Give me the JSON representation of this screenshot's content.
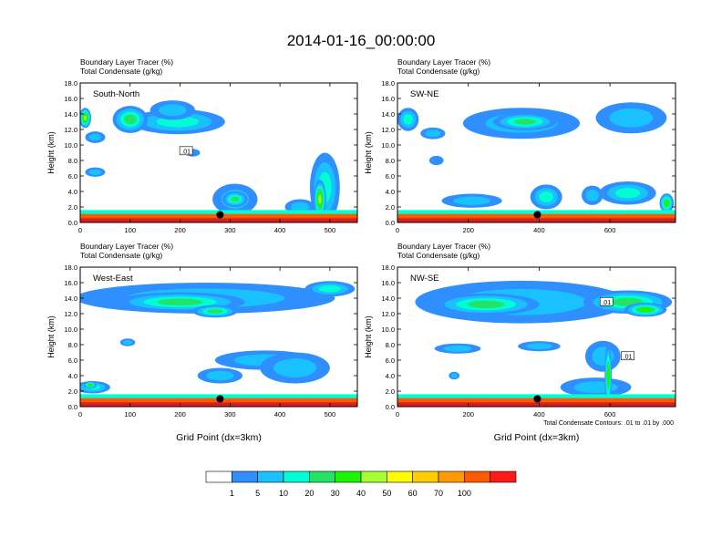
{
  "title": "2014-01-16_00:00:00",
  "chart_data": [
    {
      "type": "heatmap",
      "panel_label": "South-North",
      "title_lines": [
        "Boundary Layer Tracer   (%)",
        "Total Condensate   (g/kg)"
      ],
      "ylabel": "Height (km)",
      "xlabel": "",
      "xlim": [
        0,
        555
      ],
      "ylim": [
        0,
        18
      ],
      "xticks": [
        "0",
        "100",
        "200",
        "300",
        "400",
        "500"
      ],
      "xtick_values": [
        0,
        100,
        200,
        300,
        400,
        500
      ],
      "yticks": [
        "0.0",
        "2.0",
        "4.0",
        "6.0",
        "8.0",
        "10.0",
        "12.0",
        "14.0",
        "16.0",
        "18.0"
      ],
      "marker": {
        "x": 280,
        "y": 1.0
      },
      "contour_label": ".01",
      "contour_label_pos": {
        "x": 212,
        "y": 9.2
      },
      "blobs": [
        {
          "x": 195,
          "y": 13.0,
          "w": 190,
          "h": 3.2,
          "level": 3
        },
        {
          "x": 100,
          "y": 13.3,
          "w": 70,
          "h": 3.5,
          "level": 4
        },
        {
          "x": 10,
          "y": 13.5,
          "w": 24,
          "h": 2.6,
          "level": 6
        },
        {
          "x": 185,
          "y": 14.5,
          "w": 90,
          "h": 2.5,
          "level": 2
        },
        {
          "x": 30,
          "y": 11.0,
          "w": 40,
          "h": 1.5,
          "level": 2
        },
        {
          "x": 30,
          "y": 6.5,
          "w": 40,
          "h": 1.2,
          "level": 2
        },
        {
          "x": 225,
          "y": 9.0,
          "w": 30,
          "h": 1.0,
          "level": 1
        },
        {
          "x": 310,
          "y": 3.0,
          "w": 90,
          "h": 4.0,
          "level": 2
        },
        {
          "x": 310,
          "y": 3.0,
          "w": 50,
          "h": 2.0,
          "level": 4
        },
        {
          "x": 490,
          "y": 4.5,
          "w": 60,
          "h": 9.0,
          "level": 3
        },
        {
          "x": 480,
          "y": 3.0,
          "w": 25,
          "h": 5.0,
          "level": 6
        },
        {
          "x": 440,
          "y": 2.0,
          "w": 60,
          "h": 2.0,
          "level": 2
        }
      ]
    },
    {
      "type": "heatmap",
      "panel_label": "SW-NE",
      "title_lines": [
        "Boundary Layer Tracer   (%)",
        "Total Condensate   (g/kg)"
      ],
      "ylabel": "Height (km)",
      "xlabel": "",
      "xlim": [
        0,
        785
      ],
      "ylim": [
        0,
        18
      ],
      "xticks": [
        "0",
        "200",
        "400",
        "600"
      ],
      "xtick_values": [
        0,
        200,
        400,
        600
      ],
      "yticks": [
        "0.0",
        "2.0",
        "4.0",
        "6.0",
        "8.0",
        "10.0",
        "12.0",
        "14.0",
        "16.0",
        "18.0"
      ],
      "marker": {
        "x": 395,
        "y": 1.0
      },
      "contour_label": "",
      "contour_label_pos": {
        "x": 0,
        "y": 0
      },
      "blobs": [
        {
          "x": 350,
          "y": 12.8,
          "w": 330,
          "h": 4.0,
          "level": 2
        },
        {
          "x": 360,
          "y": 13.0,
          "w": 180,
          "h": 2.2,
          "level": 4
        },
        {
          "x": 660,
          "y": 13.5,
          "w": 200,
          "h": 4.0,
          "level": 2
        },
        {
          "x": 30,
          "y": 13.3,
          "w": 60,
          "h": 3.0,
          "level": 3
        },
        {
          "x": 100,
          "y": 11.5,
          "w": 70,
          "h": 1.5,
          "level": 2
        },
        {
          "x": 110,
          "y": 8.0,
          "w": 40,
          "h": 1.2,
          "level": 1
        },
        {
          "x": 420,
          "y": 3.3,
          "w": 90,
          "h": 3.2,
          "level": 3
        },
        {
          "x": 210,
          "y": 2.8,
          "w": 170,
          "h": 1.8,
          "level": 2
        },
        {
          "x": 650,
          "y": 3.8,
          "w": 160,
          "h": 3.0,
          "level": 3
        },
        {
          "x": 550,
          "y": 3.5,
          "w": 60,
          "h": 2.5,
          "level": 2
        },
        {
          "x": 760,
          "y": 2.5,
          "w": 40,
          "h": 2.5,
          "level": 5
        }
      ]
    },
    {
      "type": "heatmap",
      "panel_label": "West-East",
      "title_lines": [
        "Boundary Layer Tracer   (%)",
        "Total Condensate   (g/kg)"
      ],
      "ylabel": "Height (km)",
      "xlabel": "Grid Point (dx=3km)",
      "xlim": [
        0,
        555
      ],
      "ylim": [
        0,
        18
      ],
      "xticks": [
        "0",
        "100",
        "200",
        "300",
        "400",
        "500"
      ],
      "xtick_values": [
        0,
        100,
        200,
        300,
        400,
        500
      ],
      "yticks": [
        "0.0",
        "2.0",
        "4.0",
        "6.0",
        "8.0",
        "10.0",
        "12.0",
        "14.0",
        "16.0",
        "18.0"
      ],
      "marker": {
        "x": 280,
        "y": 1.0
      },
      "contour_label": "",
      "contour_label_pos": {
        "x": 0,
        "y": 0
      },
      "blobs": [
        {
          "x": 250,
          "y": 14.0,
          "w": 520,
          "h": 4.0,
          "level": 2
        },
        {
          "x": 200,
          "y": 13.5,
          "w": 260,
          "h": 2.5,
          "level": 4
        },
        {
          "x": 270,
          "y": 12.3,
          "w": 90,
          "h": 1.6,
          "level": 4
        },
        {
          "x": 500,
          "y": 15.2,
          "w": 100,
          "h": 2.0,
          "level": 3
        },
        {
          "x": 95,
          "y": 8.3,
          "w": 30,
          "h": 1.0,
          "level": 2
        },
        {
          "x": 370,
          "y": 6.0,
          "w": 200,
          "h": 2.5,
          "level": 2
        },
        {
          "x": 430,
          "y": 5.0,
          "w": 140,
          "h": 4.0,
          "level": 2
        },
        {
          "x": 280,
          "y": 4.0,
          "w": 90,
          "h": 2.0,
          "level": 2
        },
        {
          "x": 25,
          "y": 2.5,
          "w": 70,
          "h": 1.6,
          "level": 3
        },
        {
          "x": 20,
          "y": 2.8,
          "w": 25,
          "h": 1.0,
          "level": 5
        }
      ]
    },
    {
      "type": "heatmap",
      "panel_label": "NW-SE",
      "title_lines": [
        "Boundary Layer Tracer   (%)",
        "Total Condensate   (g/kg)"
      ],
      "ylabel": "Height (km)",
      "xlabel": "Grid Point (dx=3km)",
      "xlim": [
        0,
        785
      ],
      "ylim": [
        0,
        18
      ],
      "xticks": [
        "0",
        "200",
        "400",
        "600"
      ],
      "xtick_values": [
        0,
        200,
        400,
        600
      ],
      "yticks": [
        "0.0",
        "2.0",
        "4.0",
        "6.0",
        "8.0",
        "10.0",
        "12.0",
        "14.0",
        "16.0",
        "18.0"
      ],
      "marker": {
        "x": 395,
        "y": 1.0
      },
      "contour_label": ".01",
      "contour_label_pos": {
        "x": 650,
        "y": 6.5
      },
      "contour_label_2": ".01",
      "contour_label_2_pos": {
        "x": 590,
        "y": 13.5
      },
      "annotation": "Total Condensate Contours: .01 to .01 by .000",
      "blobs": [
        {
          "x": 350,
          "y": 13.5,
          "w": 600,
          "h": 5.5,
          "level": 2
        },
        {
          "x": 250,
          "y": 13.2,
          "w": 300,
          "h": 2.8,
          "level": 4
        },
        {
          "x": 650,
          "y": 13.5,
          "w": 250,
          "h": 3.0,
          "level": 4
        },
        {
          "x": 700,
          "y": 12.5,
          "w": 120,
          "h": 1.8,
          "level": 5
        },
        {
          "x": 170,
          "y": 7.5,
          "w": 130,
          "h": 1.3,
          "level": 2
        },
        {
          "x": 400,
          "y": 7.8,
          "w": 120,
          "h": 1.3,
          "level": 2
        },
        {
          "x": 580,
          "y": 6.5,
          "w": 100,
          "h": 4.0,
          "level": 2
        },
        {
          "x": 560,
          "y": 2.5,
          "w": 200,
          "h": 2.5,
          "level": 2
        },
        {
          "x": 595,
          "y": 4.0,
          "w": 20,
          "h": 8.0,
          "level": 5
        },
        {
          "x": 160,
          "y": 4.0,
          "w": 30,
          "h": 1.0,
          "level": 2
        }
      ]
    }
  ],
  "colorbar": {
    "labels": [
      "1",
      "5",
      "10",
      "20",
      "30",
      "40",
      "50",
      "60",
      "70",
      "100"
    ],
    "colors": [
      "#ffffff",
      "#2f8fff",
      "#19c1ff",
      "#00fdd3",
      "#23e364",
      "#19f600",
      "#a6ff30",
      "#fdfd00",
      "#ffcc00",
      "#ff9a00",
      "#ff5a00",
      "#ff1a1a"
    ]
  },
  "colors": {
    "ground_deep": "#d42020",
    "ground_top": "#ff5a00",
    "contour": "#000000",
    "marker": "#000000"
  }
}
